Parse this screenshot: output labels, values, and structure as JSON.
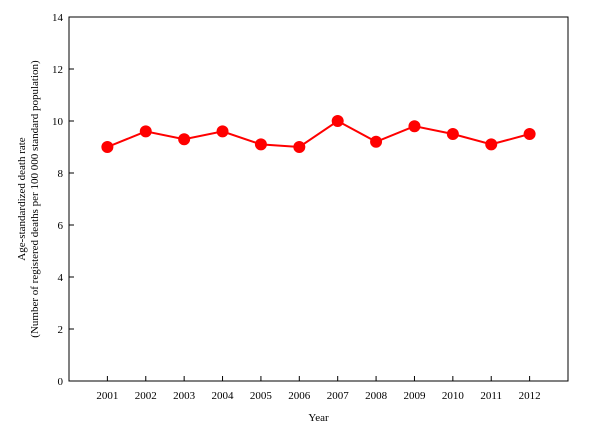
{
  "chart_data": {
    "type": "line",
    "xlabel": "Year",
    "ylabel_line1": "Age-standardized death rate",
    "ylabel_line2": "(Number of registered deaths per 100 000 standard population)",
    "categories": [
      "2001",
      "2002",
      "2003",
      "2004",
      "2005",
      "2006",
      "2007",
      "2008",
      "2009",
      "2010",
      "2011",
      "2012"
    ],
    "series": [
      {
        "values": [
          9.0,
          9.6,
          9.3,
          9.6,
          9.1,
          9.0,
          10.0,
          9.2,
          9.8,
          9.5,
          9.1,
          9.5
        ],
        "color": "#ff0000"
      }
    ],
    "ylim": [
      0,
      14
    ],
    "yticks": [
      "0",
      "2",
      "4",
      "6",
      "8",
      "10",
      "12",
      "14"
    ],
    "grid": false,
    "legend": "none",
    "marker": "filled-circle"
  }
}
